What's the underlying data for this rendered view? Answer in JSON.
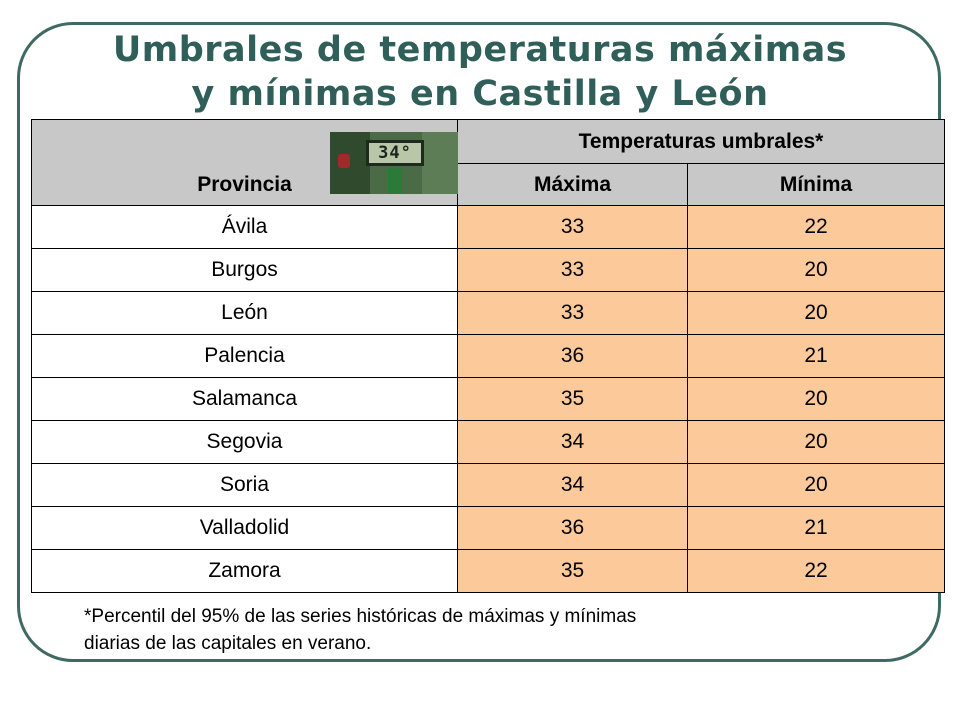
{
  "title": {
    "line1": "Umbrales de temperaturas máximas",
    "line2": "y mínimas en Castilla y León"
  },
  "table": {
    "header": {
      "province": "Provincia",
      "group": "Temperaturas umbrales*",
      "max": "Máxima",
      "min": "Mínima"
    },
    "rows": [
      {
        "province": "Ávila",
        "max": "33",
        "min": "22"
      },
      {
        "province": "Burgos",
        "max": "33",
        "min": "20"
      },
      {
        "province": "León",
        "max": "33",
        "min": "20"
      },
      {
        "province": "Palencia",
        "max": "36",
        "min": "21"
      },
      {
        "province": "Salamanca",
        "max": "35",
        "min": "20"
      },
      {
        "province": "Segovia",
        "max": "34",
        "min": "20"
      },
      {
        "province": "Soria",
        "max": "34",
        "min": "20"
      },
      {
        "province": "Valladolid",
        "max": "36",
        "min": "21"
      },
      {
        "province": "Zamora",
        "max": "35",
        "min": "22"
      }
    ]
  },
  "thermometer_display": "34°",
  "footnote": {
    "line1": "*Percentil del 95% de las series históricas de máximas y mínimas",
    "line2": "diarias de las capitales en verano."
  },
  "colors": {
    "title": "#2f5f58",
    "frame": "#3e6a63",
    "header_bg": "#c8c8c8",
    "value_bg": "#fcc99b"
  }
}
